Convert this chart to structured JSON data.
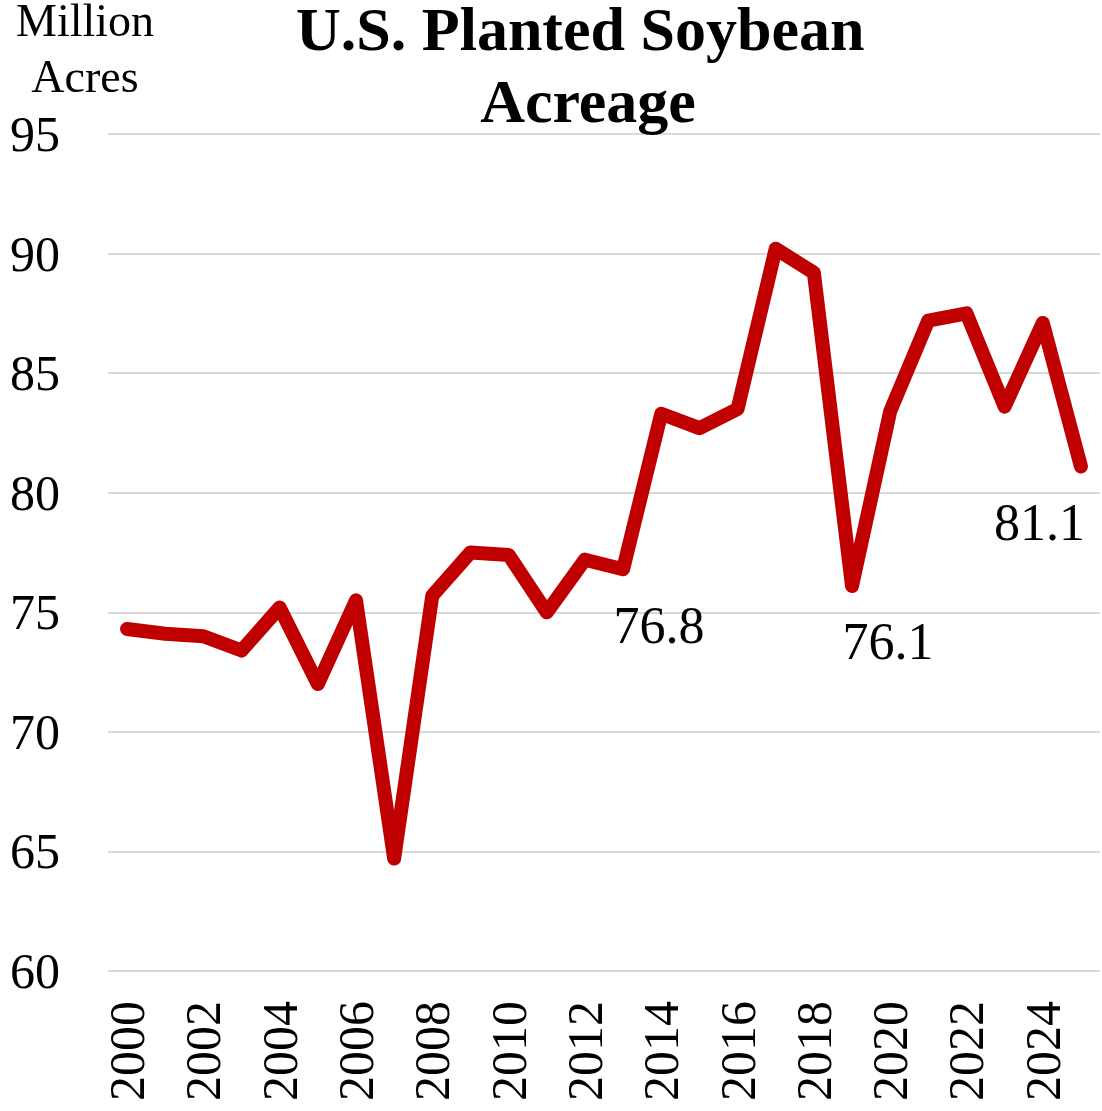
{
  "chart_data": {
    "type": "line",
    "title": "U.S. Planted Soybean Acreage",
    "ylabel": "Million Acres",
    "categories": [
      "2000",
      null,
      "2002",
      null,
      "2004",
      null,
      "2006",
      null,
      "2008",
      null,
      "2010",
      null,
      "2012",
      null,
      "2014",
      null,
      "2016",
      null,
      "2018",
      null,
      "2020",
      null,
      "2022",
      null,
      "2024",
      null
    ],
    "series": [
      {
        "color": "#c00000",
        "values": [
          74.3,
          74.1,
          74.0,
          73.4,
          75.2,
          72.0,
          75.5,
          64.7,
          75.7,
          77.5,
          77.4,
          75.0,
          77.2,
          76.8,
          83.3,
          82.7,
          83.5,
          90.2,
          89.2,
          76.1,
          83.4,
          87.2,
          87.5,
          83.6,
          87.1,
          81.1
        ],
        "value_labels": [
          null,
          null,
          null,
          null,
          null,
          null,
          null,
          null,
          null,
          null,
          null,
          null,
          null,
          "76.8",
          null,
          null,
          null,
          null,
          null,
          "76.1",
          null,
          null,
          null,
          null,
          null,
          "81.1"
        ]
      }
    ],
    "ylim": [
      60,
      95
    ],
    "yticks": [
      60,
      65,
      70,
      75,
      80,
      85,
      90,
      95
    ],
    "grid": "y",
    "marker": "none",
    "line_style": "solid"
  }
}
